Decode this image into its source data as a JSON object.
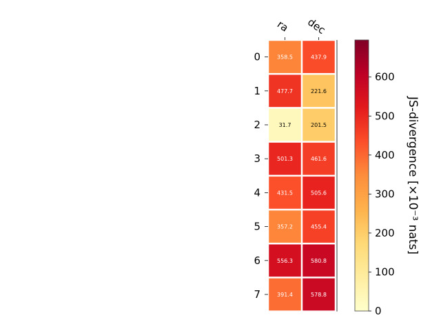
{
  "chart_data": {
    "type": "heatmap",
    "title": "",
    "columns": [
      "ra",
      "dec"
    ],
    "rows": [
      "0",
      "1",
      "2",
      "3",
      "4",
      "5",
      "6",
      "7"
    ],
    "values": [
      [
        358.5,
        437.9
      ],
      [
        477.7,
        221.6
      ],
      [
        31.7,
        201.5
      ],
      [
        501.3,
        461.6
      ],
      [
        431.5,
        505.6
      ],
      [
        357.2,
        455.4
      ],
      [
        556.3,
        580.8
      ],
      [
        391.4,
        578.8
      ]
    ],
    "colorbar": {
      "label": "JS-divergence [×10⁻³ nats]",
      "range": [
        0,
        695
      ],
      "ticks": [
        0,
        100,
        200,
        300,
        400,
        500,
        600
      ],
      "colormap": "YlOrRd"
    }
  }
}
